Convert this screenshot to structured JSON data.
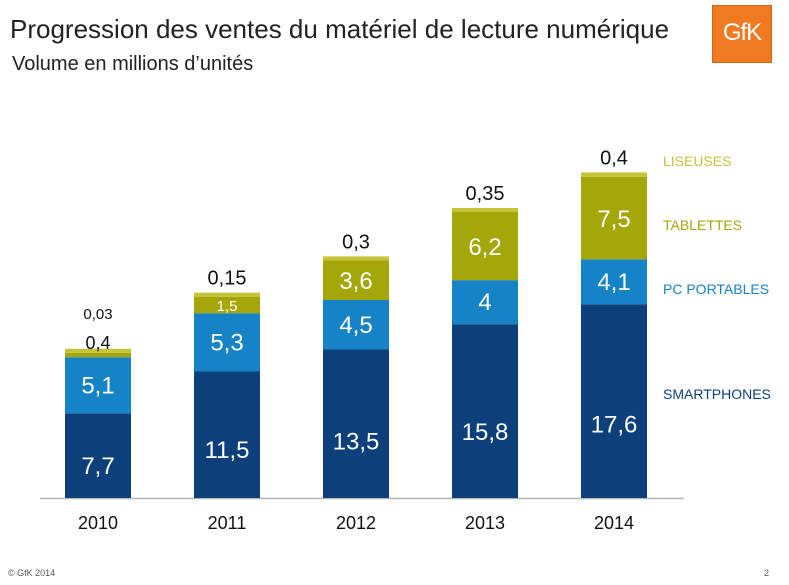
{
  "header": {
    "title": "Progression des ventes du matériel de lecture numérique",
    "subtitle": "Volume en millions d’unités",
    "logo_text": "GfK"
  },
  "footer": {
    "copyright": "© GfK 2014",
    "page_number": "2"
  },
  "colors": {
    "smartphones": "#0d3f7a",
    "pc_portables": "#1583c6",
    "tablettes": "#a4a60a",
    "liseuses": "#c5c33a",
    "axis": "#b5b5b5",
    "logo": "#f07a22"
  },
  "chart_data": {
    "type": "bar",
    "stacked": true,
    "categories": [
      "2010",
      "2011",
      "2012",
      "2013",
      "2014"
    ],
    "series": [
      {
        "name": "SMARTPHONES",
        "values": [
          7.7,
          11.5,
          13.5,
          15.8,
          17.6
        ],
        "labels": [
          "7,7",
          "11,5",
          "13,5",
          "15,8",
          "17,6"
        ]
      },
      {
        "name": "PC PORTABLES",
        "values": [
          5.1,
          5.3,
          4.5,
          4,
          4.1
        ],
        "labels": [
          "5,1",
          "5,3",
          "4,5",
          "4",
          "4,1"
        ]
      },
      {
        "name": "TABLETTES",
        "values": [
          0.4,
          1.5,
          3.6,
          6.2,
          7.5
        ],
        "labels": [
          "0,4",
          "1,5",
          "3,6",
          "6,2",
          "7,5"
        ]
      },
      {
        "name": "LISEUSES",
        "values": [
          0.03,
          0.15,
          0.3,
          0.35,
          0.4
        ],
        "labels": [
          "0,03",
          "0,15",
          "0,3",
          "0,35",
          "0,4"
        ]
      }
    ],
    "legend_position": "right",
    "grid": false,
    "title": "Progression des ventes du matériel de lecture numérique",
    "subtitle": "Volume en millions d’unités",
    "xlabel": "",
    "ylabel": ""
  }
}
